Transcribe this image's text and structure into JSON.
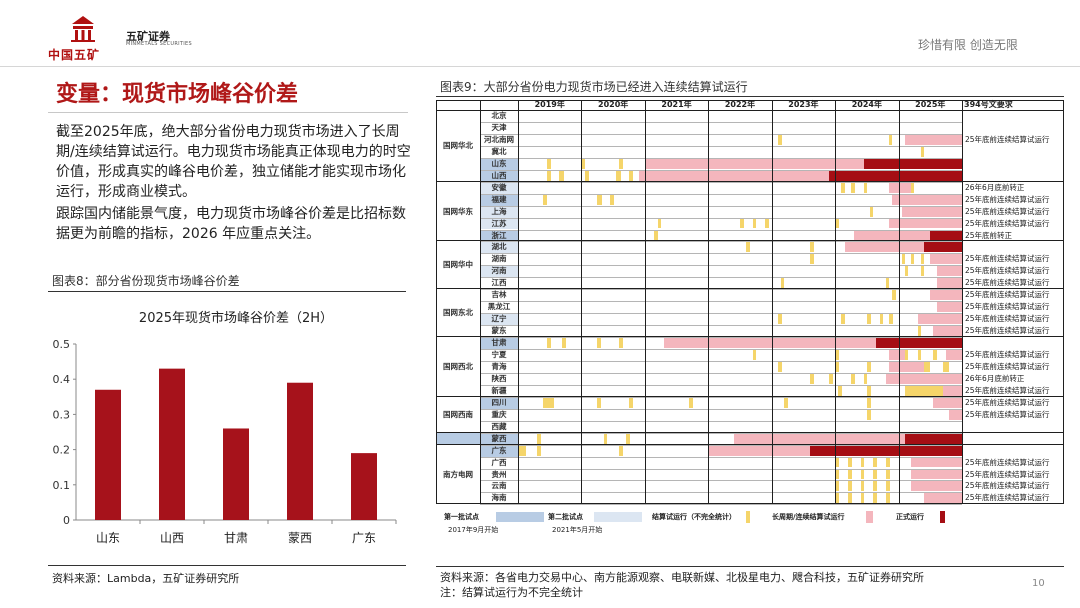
{
  "header": {
    "logo_main": "中国五矿",
    "logo_sub": "五矿证券",
    "logo_sub_en": "MINMETALS SECURITIES",
    "slogan": "珍惜有限  创造无限",
    "page_number": "10"
  },
  "left": {
    "title": "变量：现货市场峰谷价差",
    "para1": "截至2025年底，绝大部分省份电力现货市场进入了长周期/连续结算试运行。电力现货市场能真正体现电力的时空价值，形成真实的峰谷电价差，独立储能才能实现市场化运行，形成商业模式。",
    "para2": "跟踪国内储能景气度，电力现货市场峰谷价差是比招标数据更为前瞻的指标，2026 年应重点关注。",
    "chart_caption": "图表8：部分省份现货市场峰谷价差",
    "source": "资料来源：Lambda，五矿证券研究所"
  },
  "right": {
    "caption": "图表9：大部分省份电力现货市场已经进入连续结算试运行",
    "source1": "资料来源：各省电力交易中心、南方能源观察、电联新媒、北极星电力、飕合科技，五矿证券研究所",
    "source2": "注：结算试运行为不完全统计",
    "years": [
      "2019年",
      "2020年",
      "2021年",
      "2022年",
      "2023年",
      "2024年",
      "2025年"
    ],
    "req_header": "394号文要求",
    "regions": [
      {
        "name": "国网华北",
        "provinces": [
          "北京",
          "天津",
          "河北南网",
          "冀北",
          "山东",
          "山西"
        ]
      },
      {
        "name": "国网华东",
        "provinces": [
          "安徽",
          "福建",
          "上海",
          "江苏",
          "浙江"
        ]
      },
      {
        "name": "国网华中",
        "provinces": [
          "湖北",
          "湖南",
          "河南",
          "江西"
        ]
      },
      {
        "name": "国网东北",
        "provinces": [
          "吉林",
          "黑龙江",
          "辽宁",
          "蒙东"
        ]
      },
      {
        "name": "国网西北",
        "provinces": [
          "甘肃",
          "宁夏",
          "青海",
          "陕西",
          "新疆"
        ]
      },
      {
        "name": "国网西南",
        "provinces": [
          "四川",
          "重庆",
          "西藏"
        ]
      },
      {
        "name": "",
        "provinces": [
          "蒙西"
        ]
      },
      {
        "name": "南方电网",
        "provinces": [
          "广东",
          "广西",
          "贵州",
          "云南",
          "海南"
        ]
      }
    ],
    "requirements": [
      "",
      "",
      "25年底前连续结算试运行",
      "",
      "",
      "",
      "26年6月底前转正",
      "25年底前连续结算试运行",
      "25年底前连续结算试运行",
      "25年底前连续结算试运行",
      "25年底前转正",
      "",
      "25年底前连续结算试运行",
      "25年底前连续结算试运行",
      "25年底前连续结算试运行",
      "25年底前连续结算试运行",
      "25年底前连续结算试运行",
      "25年底前连续结算试运行",
      "25年底前连续结算试运行",
      "",
      "25年底前连续结算试运行",
      "25年底前连续结算试运行",
      "26年6月底前转正",
      "25年底前连续结算试运行",
      "25年底前连续结算试运行",
      "25年底前连续结算试运行",
      "",
      "",
      "",
      "25年底前连续结算试运行",
      "25年底前连续结算试运行",
      "25年底前连续结算试运行",
      "25年底前连续结算试运行"
    ],
    "legend": {
      "batch1": "第一批试点",
      "batch1_date": "2017年9月开始",
      "batch2": "第二批试点",
      "batch2_date": "2021年5月开始",
      "trial": "结算试运行（不完全统计）",
      "long": "长周期/连续结算试运行",
      "formal": "正式运行"
    },
    "colors": {
      "batch1": "#b8cce4",
      "batch2": "#dce6f2",
      "trial": "#f5d56a",
      "long": "#f4b6bd",
      "formal": "#a50e14",
      "grid": "#1f1f1f"
    }
  },
  "chart_data": {
    "type": "bar",
    "title": "2025年现货市场峰谷价差（2H）",
    "categories": [
      "山东",
      "山西",
      "甘肃",
      "蒙西",
      "广东"
    ],
    "values": [
      0.37,
      0.43,
      0.26,
      0.39,
      0.19
    ],
    "ylim": [
      0,
      0.5
    ],
    "yticks": [
      "0",
      "0.1",
      "0.2",
      "0.3",
      "0.4",
      "0.5"
    ],
    "color": "#a6121b"
  }
}
